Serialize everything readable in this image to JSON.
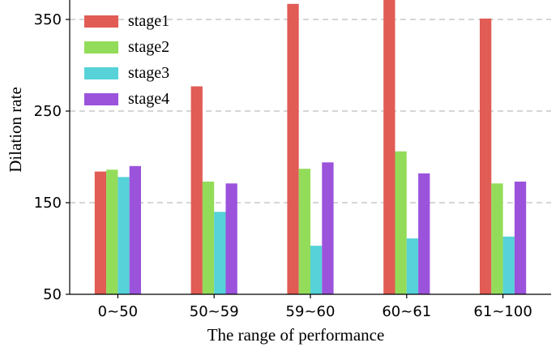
{
  "chart_data": {
    "type": "bar",
    "title": "",
    "xlabel": "The range of performance",
    "ylabel": "Dilation rate",
    "categories": [
      "0~50",
      "50~59",
      "59~60",
      "60~61",
      "61~100"
    ],
    "yticks": [
      50,
      150,
      250,
      350
    ],
    "ylim": [
      50,
      371
    ],
    "grid": "y-dashed",
    "legend": "top-left",
    "series": [
      {
        "name": "stage1",
        "color": "#e05c55",
        "values": [
          184,
          277,
          367,
          378,
          351
        ]
      },
      {
        "name": "stage2",
        "color": "#93dc59",
        "values": [
          186,
          173,
          187,
          206,
          171
        ]
      },
      {
        "name": "stage3",
        "color": "#56d2d8",
        "values": [
          178,
          140,
          103,
          111,
          113
        ]
      },
      {
        "name": "stage4",
        "color": "#9b53dc",
        "values": [
          190,
          171,
          194,
          182,
          173
        ]
      }
    ]
  }
}
